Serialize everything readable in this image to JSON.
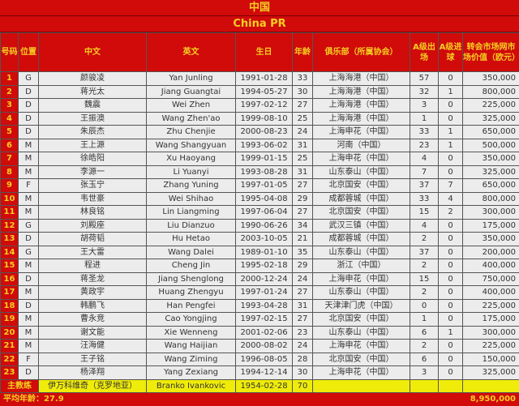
{
  "title_cn": "中国",
  "title_en": "China PR",
  "headers": [
    "号码",
    "位置",
    "中文",
    "英文",
    "生日",
    "年龄",
    "俱乐部（所属协会）",
    "A级出场",
    "A级进球",
    "转会市场网市场价值（欧元）"
  ],
  "rows": [
    [
      "1",
      "G",
      "颜骏凌",
      "Yan Junling",
      "1991-01-28",
      "33",
      "上海海港（中国）",
      "57",
      "0",
      "350,000"
    ],
    [
      "2",
      "D",
      "蒋光太",
      "Jiang Guangtai",
      "1994-05-27",
      "30",
      "上海海港（中国）",
      "32",
      "1",
      "800,000"
    ],
    [
      "3",
      "D",
      "魏震",
      "Wei Zhen",
      "1997-02-12",
      "27",
      "上海海港（中国）",
      "3",
      "0",
      "225,000"
    ],
    [
      "4",
      "D",
      "王振澳",
      "Wang Zhen'ao",
      "1999-08-10",
      "25",
      "上海海港（中国）",
      "1",
      "0",
      "325,000"
    ],
    [
      "5",
      "D",
      "朱辰杰",
      "Zhu Chenjie",
      "2000-08-23",
      "24",
      "上海申花（中国）",
      "33",
      "1",
      "650,000"
    ],
    [
      "6",
      "M",
      "王上源",
      "Wang Shangyuan",
      "1993-06-02",
      "31",
      "河南（中国）",
      "23",
      "1",
      "500,000"
    ],
    [
      "7",
      "M",
      "徐皓阳",
      "Xu Haoyang",
      "1999-01-15",
      "25",
      "上海申花（中国）",
      "4",
      "0",
      "350,000"
    ],
    [
      "8",
      "M",
      "李源一",
      "Li Yuanyi",
      "1993-08-28",
      "31",
      "山东泰山（中国）",
      "7",
      "0",
      "325,000"
    ],
    [
      "9",
      "F",
      "张玉宁",
      "Zhang Yuning",
      "1997-01-05",
      "27",
      "北京国安（中国）",
      "37",
      "7",
      "650,000"
    ],
    [
      "10",
      "M",
      "韦世豪",
      "Wei Shihao",
      "1995-04-08",
      "29",
      "成都蓉城（中国）",
      "33",
      "4",
      "800,000"
    ],
    [
      "11",
      "M",
      "林良铭",
      "Lin Liangming",
      "1997-06-04",
      "27",
      "北京国安（中国）",
      "15",
      "2",
      "300,000"
    ],
    [
      "12",
      "G",
      "刘殿座",
      "Liu Dianzuo",
      "1990-06-26",
      "34",
      "武汉三镇（中国）",
      "4",
      "0",
      "175,000"
    ],
    [
      "13",
      "D",
      "胡荷韬",
      "Hu Hetao",
      "2003-10-05",
      "21",
      "成都蓉城（中国）",
      "2",
      "0",
      "350,000"
    ],
    [
      "14",
      "G",
      "王大雷",
      "Wang Dalei",
      "1989-01-10",
      "35",
      "山东泰山（中国）",
      "37",
      "0",
      "200,000"
    ],
    [
      "15",
      "M",
      "程进",
      "Cheng Jin",
      "1995-02-18",
      "29",
      "浙江（中国）",
      "2",
      "0",
      "400,000"
    ],
    [
      "16",
      "D",
      "蒋圣龙",
      "Jiang Shenglong",
      "2000-12-24",
      "24",
      "上海申花（中国）",
      "15",
      "0",
      "750,000"
    ],
    [
      "17",
      "M",
      "黄政宇",
      "Huang Zhengyu",
      "1997-01-24",
      "27",
      "山东泰山（中国）",
      "2",
      "0",
      "400,000"
    ],
    [
      "18",
      "D",
      "韩鹏飞",
      "Han Pengfei",
      "1993-04-28",
      "31",
      "天津津门虎（中国）",
      "0",
      "0",
      "225,000"
    ],
    [
      "19",
      "M",
      "曹永竞",
      "Cao Yongjing",
      "1997-02-15",
      "27",
      "北京国安（中国）",
      "1",
      "0",
      "175,000"
    ],
    [
      "20",
      "M",
      "谢文能",
      "Xie Wenneng",
      "2001-02-06",
      "23",
      "山东泰山（中国）",
      "6",
      "1",
      "300,000"
    ],
    [
      "21",
      "M",
      "汪海健",
      "Wang Haijian",
      "2000-08-02",
      "24",
      "上海申花（中国）",
      "2",
      "0",
      "225,000"
    ],
    [
      "22",
      "F",
      "王子铭",
      "Wang Ziming",
      "1996-08-05",
      "28",
      "北京国安（中国）",
      "6",
      "0",
      "150,000"
    ],
    [
      "23",
      "D",
      "杨泽翔",
      "Yang Zexiang",
      "1994-12-14",
      "30",
      "上海申花（中国）",
      "3",
      "0",
      "325,000"
    ]
  ],
  "coach": {
    "label": "主教练",
    "name_cn": "伊万科维奇（克罗地亚）",
    "name_en": "Branko Ivankovic",
    "birth": "1954-02-28",
    "age": "70"
  },
  "footer": {
    "avg_age": "平均年龄：27.9",
    "total_value": "8,950,000"
  },
  "colors": {
    "header_bg": "#d10a0a",
    "header_text": "#f5d020",
    "coach_bg": "#f0ec0a"
  }
}
